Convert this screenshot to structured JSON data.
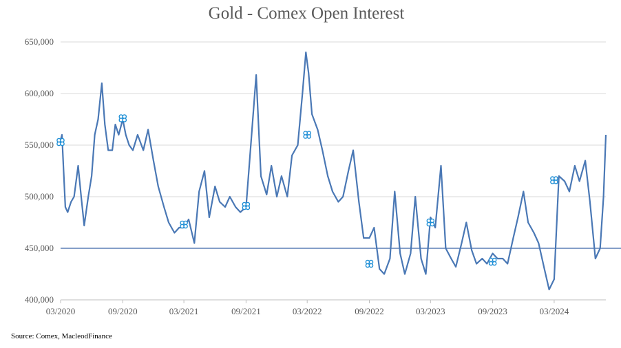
{
  "chart_data": {
    "type": "line",
    "title": "Gold - Comex Open Interest",
    "source": "Source: Comex,  MacleodFinance",
    "xlabel": "",
    "ylabel": "",
    "ylim": [
      400000,
      650000
    ],
    "y_ticks": [
      400000,
      450000,
      500000,
      550000,
      600000,
      650000
    ],
    "y_tick_labels": [
      "400,000",
      "450,000",
      "500,000",
      "550,000",
      "600,000",
      "650,000"
    ],
    "x_range": [
      "2020-03",
      "2024-08"
    ],
    "x_ticks": [
      "2020-03",
      "2020-09",
      "2021-03",
      "2021-09",
      "2022-03",
      "2022-09",
      "2023-03",
      "2023-09",
      "2024-03"
    ],
    "x_tick_labels": [
      "03/2020",
      "09/2020",
      "03/2021",
      "09/2021",
      "03/2022",
      "09/2022",
      "03/2023",
      "09/2023",
      "03/2024"
    ],
    "grid": "horizontal",
    "colors": {
      "series": "#4a78b5",
      "reference_line": "#3a65a6",
      "marker": "#1f8fd6",
      "grid": "#d9d9d9"
    },
    "reference_line": {
      "y": 450000
    },
    "series": [
      {
        "x": [
          "2020-03-01",
          "2020-03-05",
          "2020-03-10",
          "2020-03-15",
          "2020-03-22",
          "2020-04-01",
          "2020-04-10",
          "2020-04-22",
          "2020-05-01",
          "2020-05-10",
          "2020-05-22",
          "2020-06-01",
          "2020-06-10",
          "2020-06-20",
          "2020-07-01",
          "2020-07-10",
          "2020-07-20",
          "2020-08-01",
          "2020-08-10",
          "2020-08-20",
          "2020-09-01",
          "2020-09-10",
          "2020-09-20",
          "2020-10-01",
          "2020-10-15",
          "2020-11-01",
          "2020-11-15",
          "2020-12-01",
          "2020-12-15",
          "2021-01-01",
          "2021-01-15",
          "2021-02-01",
          "2021-02-15",
          "2021-03-01",
          "2021-03-15",
          "2021-04-01",
          "2021-04-15",
          "2021-05-01",
          "2021-05-15",
          "2021-06-01",
          "2021-06-15",
          "2021-07-01",
          "2021-07-15",
          "2021-08-01",
          "2021-08-15",
          "2021-09-01",
          "2021-09-15",
          "2021-10-01",
          "2021-10-15",
          "2021-11-01",
          "2021-11-15",
          "2021-12-01",
          "2021-12-15",
          "2022-01-01",
          "2022-01-15",
          "2022-02-01",
          "2022-02-15",
          "2022-02-25",
          "2022-03-05",
          "2022-03-15",
          "2022-04-01",
          "2022-04-15",
          "2022-05-01",
          "2022-05-15",
          "2022-06-01",
          "2022-06-15",
          "2022-07-01",
          "2022-07-15",
          "2022-08-01",
          "2022-08-15",
          "2022-09-01",
          "2022-09-15",
          "2022-10-01",
          "2022-10-15",
          "2022-11-01",
          "2022-11-15",
          "2022-12-01",
          "2022-12-15",
          "2023-01-01",
          "2023-01-15",
          "2023-02-01",
          "2023-02-15",
          "2023-03-01",
          "2023-03-15",
          "2023-04-01",
          "2023-04-15",
          "2023-05-01",
          "2023-05-15",
          "2023-06-01",
          "2023-06-15",
          "2023-07-01",
          "2023-07-15",
          "2023-08-01",
          "2023-08-15",
          "2023-09-01",
          "2023-09-15",
          "2023-10-01",
          "2023-10-15",
          "2023-11-01",
          "2023-11-15",
          "2023-12-01",
          "2023-12-15",
          "2024-01-01",
          "2024-01-15",
          "2024-02-01",
          "2024-02-15",
          "2024-03-01",
          "2024-03-15",
          "2024-04-01",
          "2024-04-15",
          "2024-05-01",
          "2024-05-15",
          "2024-06-01",
          "2024-06-15",
          "2024-07-01",
          "2024-07-15",
          "2024-07-25",
          "2024-08-01"
        ],
        "values": [
          555000,
          560000,
          525000,
          490000,
          485000,
          495000,
          500000,
          530000,
          500000,
          472000,
          500000,
          520000,
          560000,
          575000,
          610000,
          570000,
          545000,
          545000,
          570000,
          560000,
          575000,
          560000,
          550000,
          545000,
          560000,
          545000,
          565000,
          535000,
          510000,
          490000,
          475000,
          465000,
          470000,
          470000,
          478000,
          455000,
          505000,
          525000,
          480000,
          510000,
          495000,
          490000,
          500000,
          490000,
          485000,
          490000,
          550000,
          618000,
          520000,
          502000,
          530000,
          500000,
          520000,
          500000,
          540000,
          550000,
          600000,
          640000,
          620000,
          580000,
          565000,
          545000,
          520000,
          505000,
          495000,
          500000,
          525000,
          545000,
          495000,
          460000,
          460000,
          470000,
          430000,
          425000,
          440000,
          505000,
          445000,
          425000,
          445000,
          500000,
          440000,
          425000,
          480000,
          470000,
          530000,
          450000,
          440000,
          432000,
          455000,
          475000,
          448000,
          435000,
          440000,
          435000,
          445000,
          440000,
          440000,
          435000,
          460000,
          480000,
          505000,
          475000,
          465000,
          455000,
          430000,
          410000,
          420000,
          520000,
          515000,
          505000,
          530000,
          515000,
          535000,
          495000,
          440000,
          450000,
          500000,
          560000
        ]
      }
    ],
    "markers": [
      {
        "x": "2020-03-01",
        "y": 553000
      },
      {
        "x": "2020-09-01",
        "y": 576000
      },
      {
        "x": "2021-03-01",
        "y": 473000
      },
      {
        "x": "2021-09-01",
        "y": 491000
      },
      {
        "x": "2022-03-01",
        "y": 560000
      },
      {
        "x": "2022-09-01",
        "y": 435000
      },
      {
        "x": "2023-03-01",
        "y": 475000
      },
      {
        "x": "2023-09-01",
        "y": 437000
      },
      {
        "x": "2024-03-01",
        "y": 516000
      }
    ]
  }
}
